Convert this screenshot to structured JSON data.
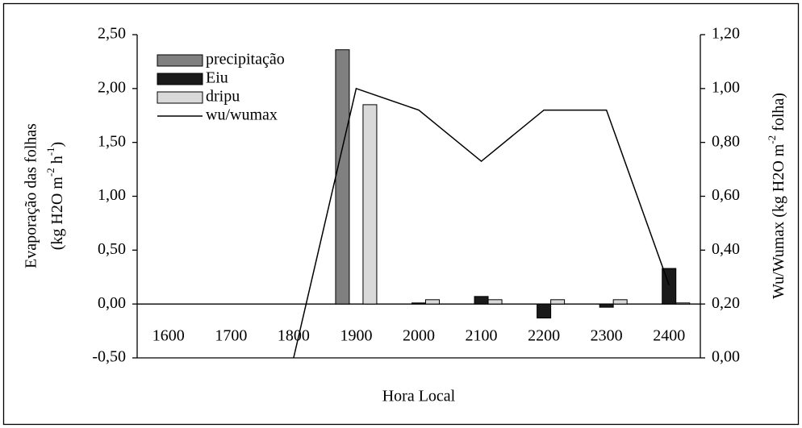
{
  "chart_data": {
    "type": "bar",
    "categories": [
      "1600",
      "1700",
      "1800",
      "1900",
      "2000",
      "2100",
      "2200",
      "2300",
      "2400"
    ],
    "series": [
      {
        "name": "precipitação",
        "color": "#808080",
        "values": [
          0,
          0,
          0,
          2.36,
          0,
          0,
          0,
          0,
          0
        ]
      },
      {
        "name": "Eiu",
        "color": "#1a1a1a",
        "values": [
          0,
          0,
          0,
          0,
          0.01,
          0.07,
          -0.13,
          -0.03,
          0.33
        ]
      },
      {
        "name": "dripu",
        "color": "#d9d9d9",
        "values": [
          0,
          0,
          0,
          1.85,
          0.04,
          0.04,
          0.04,
          0.04,
          0.01
        ]
      },
      {
        "name": "wu/wumax",
        "type": "line",
        "axis": "y2",
        "color": "#000000",
        "values": [
          null,
          null,
          0,
          1.0,
          0.92,
          0.73,
          0.92,
          0.92,
          0.27
        ]
      }
    ],
    "ylim": [
      -0.5,
      2.5
    ],
    "yticks": [
      {
        "value": -0.5,
        "label": "-0,50"
      },
      {
        "value": 0,
        "label": "0,00"
      },
      {
        "value": 0.5,
        "label": "0,50"
      },
      {
        "value": 1,
        "label": "1,00"
      },
      {
        "value": 1.5,
        "label": "1,50"
      },
      {
        "value": 2,
        "label": "2,00"
      },
      {
        "value": 2.5,
        "label": "2,50"
      }
    ],
    "y2lim": [
      0,
      1.2
    ],
    "y2ticks": [
      {
        "value": 0,
        "label": "0,00"
      },
      {
        "value": 0.2,
        "label": "0,20"
      },
      {
        "value": 0.4,
        "label": "0,40"
      },
      {
        "value": 0.6,
        "label": "0,60"
      },
      {
        "value": 0.8,
        "label": "0,80"
      },
      {
        "value": 1,
        "label": "1,00"
      },
      {
        "value": 1.2,
        "label": "1,20"
      }
    ],
    "x_label": "Hora Local",
    "y_label": [
      "Evaporação das folhas",
      "(kg H2O m",
      "-2",
      " h",
      "-1",
      ")"
    ],
    "y2_label": [
      "Wu/Wumax (kg H2O m",
      "-2",
      " folha)"
    ],
    "legend": "top-left",
    "grid": false
  }
}
